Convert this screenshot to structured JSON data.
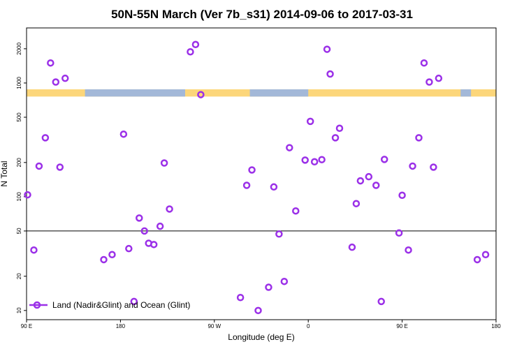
{
  "chart_data": {
    "type": "scatter",
    "title": "50N-55N March (Ver 7b_s31)   2014-09-06 to 2017-03-31",
    "xlabel": "Longitude (deg E)",
    "ylabel": "N Total",
    "xscale": "linear",
    "yscale": "log",
    "xlim": [
      90,
      540
    ],
    "ylim": [
      8.3,
      3050
    ],
    "x_ticks": [
      {
        "value": 90,
        "label": "90 E"
      },
      {
        "value": 180,
        "label": "180"
      },
      {
        "value": 270,
        "label": "90 W"
      },
      {
        "value": 360,
        "label": "0"
      },
      {
        "value": 450,
        "label": "90 E"
      },
      {
        "value": 540,
        "label": "180"
      }
    ],
    "y_ticks": [
      {
        "value": 10,
        "label": "10"
      },
      {
        "value": 20,
        "label": "20"
      },
      {
        "value": 50,
        "label": "50"
      },
      {
        "value": 100,
        "label": "100"
      },
      {
        "value": 200,
        "label": "200"
      },
      {
        "value": 500,
        "label": "500"
      },
      {
        "value": 1000,
        "label": "1000"
      },
      {
        "value": 2000,
        "label": "2000"
      }
    ],
    "reference_line": 50,
    "land_band": {
      "y_range": [
        760,
        880
      ],
      "ocean_color": "#a3b8d8",
      "land_color": "#fcd67a",
      "ocean_x_ranges": [
        [
          146,
          242
        ],
        [
          304,
          360
        ],
        [
          506,
          516
        ]
      ]
    },
    "legend": {
      "label": "Land (Nadir&Glint) and Ocean (Glint)",
      "position": "bottom-left"
    },
    "series": [
      {
        "name": "Land (Nadir&Glint) and Ocean (Glint)",
        "color": "#9b30e8",
        "points": [
          {
            "x": 91,
            "y": 104
          },
          {
            "x": 97,
            "y": 34
          },
          {
            "x": 102,
            "y": 186
          },
          {
            "x": 108,
            "y": 330
          },
          {
            "x": 113,
            "y": 1500
          },
          {
            "x": 118,
            "y": 1020
          },
          {
            "x": 122,
            "y": 182
          },
          {
            "x": 127,
            "y": 1100
          },
          {
            "x": 164,
            "y": 28
          },
          {
            "x": 172,
            "y": 31
          },
          {
            "x": 183,
            "y": 355
          },
          {
            "x": 188,
            "y": 35
          },
          {
            "x": 193,
            "y": 12
          },
          {
            "x": 198,
            "y": 65
          },
          {
            "x": 203,
            "y": 50
          },
          {
            "x": 207,
            "y": 39
          },
          {
            "x": 212,
            "y": 38
          },
          {
            "x": 218,
            "y": 55
          },
          {
            "x": 222,
            "y": 198
          },
          {
            "x": 227,
            "y": 78
          },
          {
            "x": 247,
            "y": 1880
          },
          {
            "x": 252,
            "y": 2180
          },
          {
            "x": 257,
            "y": 790
          },
          {
            "x": 295,
            "y": 13
          },
          {
            "x": 301,
            "y": 126
          },
          {
            "x": 306,
            "y": 172
          },
          {
            "x": 312,
            "y": 10
          },
          {
            "x": 322,
            "y": 16
          },
          {
            "x": 327,
            "y": 122
          },
          {
            "x": 332,
            "y": 47
          },
          {
            "x": 337,
            "y": 18
          },
          {
            "x": 342,
            "y": 270
          },
          {
            "x": 348,
            "y": 75
          },
          {
            "x": 357,
            "y": 210
          },
          {
            "x": 362,
            "y": 460
          },
          {
            "x": 366,
            "y": 203
          },
          {
            "x": 373,
            "y": 212
          },
          {
            "x": 378,
            "y": 1980
          },
          {
            "x": 381,
            "y": 1200
          },
          {
            "x": 386,
            "y": 330
          },
          {
            "x": 390,
            "y": 400
          },
          {
            "x": 402,
            "y": 36
          },
          {
            "x": 406,
            "y": 87
          },
          {
            "x": 410,
            "y": 138
          },
          {
            "x": 418,
            "y": 150
          },
          {
            "x": 425,
            "y": 126
          },
          {
            "x": 430,
            "y": 12
          },
          {
            "x": 433,
            "y": 213
          },
          {
            "x": 447,
            "y": 48
          },
          {
            "x": 450,
            "y": 103
          },
          {
            "x": 456,
            "y": 34
          },
          {
            "x": 460,
            "y": 186
          },
          {
            "x": 466,
            "y": 330
          },
          {
            "x": 471,
            "y": 1500
          },
          {
            "x": 476,
            "y": 1020
          },
          {
            "x": 480,
            "y": 182
          },
          {
            "x": 485,
            "y": 1100
          },
          {
            "x": 522,
            "y": 28
          },
          {
            "x": 530,
            "y": 31
          }
        ]
      }
    ]
  }
}
